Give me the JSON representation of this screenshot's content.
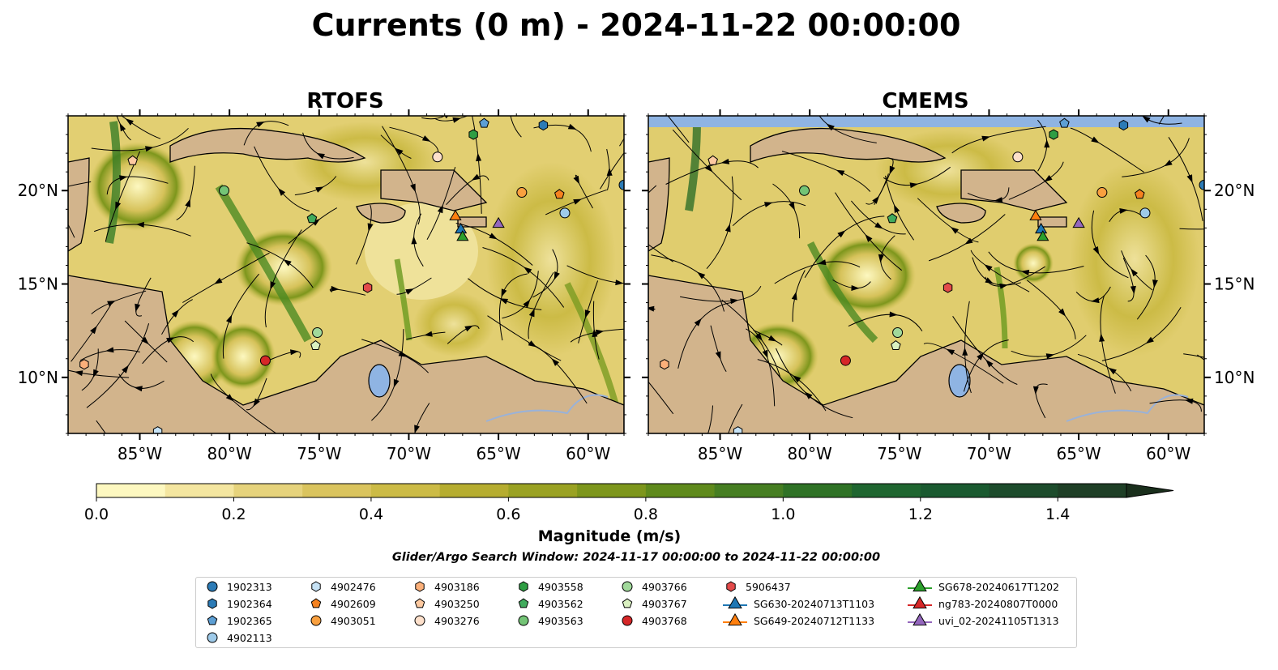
{
  "figure": {
    "title": "Currents (0 m) - 2024-11-22 00:00:00",
    "search_window": "Glider/Argo Search Window: 2024-11-17 00:00:00 to 2024-11-22 00:00:00"
  },
  "chart_data": [
    {
      "type": "heatmap",
      "title": "RTOFS",
      "xlim": [
        -89,
        -58
      ],
      "ylim": [
        7,
        24
      ],
      "x_ticks": [
        "85°W",
        "80°W",
        "75°W",
        "70°W",
        "65°W",
        "60°W"
      ],
      "y_ticks": [
        "10°N",
        "15°N",
        "20°N"
      ],
      "markers": [
        {
          "id": "1902313",
          "lon": -58.0,
          "lat": 20.3
        },
        {
          "id": "1902364",
          "lon": -62.5,
          "lat": 23.5
        },
        {
          "id": "1902365",
          "lon": -65.8,
          "lat": 23.6
        },
        {
          "id": "4902113",
          "lon": -61.3,
          "lat": 18.8
        },
        {
          "id": "4902476",
          "lon": -84.0,
          "lat": 7.1
        },
        {
          "id": "4902609",
          "lon": -61.6,
          "lat": 19.8
        },
        {
          "id": "4903051",
          "lon": -63.7,
          "lat": 19.9
        },
        {
          "id": "4903186",
          "lon": -88.1,
          "lat": 10.7
        },
        {
          "id": "4903250",
          "lon": -85.4,
          "lat": 21.6
        },
        {
          "id": "4903276",
          "lon": -68.4,
          "lat": 21.8
        },
        {
          "id": "4903558",
          "lon": -66.4,
          "lat": 23.0
        },
        {
          "id": "4903562",
          "lon": -75.4,
          "lat": 18.5
        },
        {
          "id": "4903563",
          "lon": -80.3,
          "lat": 20.0
        },
        {
          "id": "4903766",
          "lon": -75.1,
          "lat": 12.4
        },
        {
          "id": "4903767",
          "lon": -75.2,
          "lat": 11.7
        },
        {
          "id": "4903768",
          "lon": -78.0,
          "lat": 10.9
        },
        {
          "id": "5906437",
          "lon": -72.3,
          "lat": 14.8
        },
        {
          "id": "SG630-20240713T1103",
          "lon": -67.1,
          "lat": 17.9
        },
        {
          "id": "SG649-20240712T1133",
          "lon": -67.4,
          "lat": 18.6
        },
        {
          "id": "SG678-20240617T1202",
          "lon": -67.0,
          "lat": 17.5
        },
        {
          "id": "uvi_02-20241105T1313",
          "lon": -65.0,
          "lat": 18.2
        }
      ]
    },
    {
      "type": "heatmap",
      "title": "CMEMS",
      "xlim": [
        -89,
        -58
      ],
      "ylim": [
        7,
        24
      ],
      "x_ticks": [
        "85°W",
        "80°W",
        "75°W",
        "70°W",
        "65°W",
        "60°W"
      ],
      "y_ticks": [
        "10°N",
        "15°N",
        "20°N"
      ],
      "markers": [
        {
          "id": "1902313",
          "lon": -58.0,
          "lat": 20.3
        },
        {
          "id": "1902364",
          "lon": -62.5,
          "lat": 23.5
        },
        {
          "id": "1902365",
          "lon": -65.8,
          "lat": 23.6
        },
        {
          "id": "4902113",
          "lon": -61.3,
          "lat": 18.8
        },
        {
          "id": "4902476",
          "lon": -84.0,
          "lat": 7.1
        },
        {
          "id": "4902609",
          "lon": -61.6,
          "lat": 19.8
        },
        {
          "id": "4903051",
          "lon": -63.7,
          "lat": 19.9
        },
        {
          "id": "4903186",
          "lon": -88.1,
          "lat": 10.7
        },
        {
          "id": "4903250",
          "lon": -85.4,
          "lat": 21.6
        },
        {
          "id": "4903276",
          "lon": -68.4,
          "lat": 21.8
        },
        {
          "id": "4903558",
          "lon": -66.4,
          "lat": 23.0
        },
        {
          "id": "4903562",
          "lon": -75.4,
          "lat": 18.5
        },
        {
          "id": "4903563",
          "lon": -80.3,
          "lat": 20.0
        },
        {
          "id": "4903766",
          "lon": -75.1,
          "lat": 12.4
        },
        {
          "id": "4903767",
          "lon": -75.2,
          "lat": 11.7
        },
        {
          "id": "4903768",
          "lon": -78.0,
          "lat": 10.9
        },
        {
          "id": "5906437",
          "lon": -72.3,
          "lat": 14.8
        },
        {
          "id": "SG630-20240713T1103",
          "lon": -67.1,
          "lat": 17.9
        },
        {
          "id": "SG649-20240712T1133",
          "lon": -67.4,
          "lat": 18.6
        },
        {
          "id": "SG678-20240617T1202",
          "lon": -67.0,
          "lat": 17.5
        },
        {
          "id": "uvi_02-20241105T1313",
          "lon": -65.0,
          "lat": 18.2
        }
      ]
    }
  ],
  "colorbar": {
    "label": "Magnitude (m/s)",
    "min": 0.0,
    "max": 1.5,
    "extend": "max",
    "tick_values": [
      0.0,
      0.2,
      0.4,
      0.6,
      0.8,
      1.0,
      1.2,
      1.4
    ],
    "ticks": [
      "0.0",
      "0.2",
      "0.4",
      "0.6",
      "0.8",
      "1.0",
      "1.2",
      "1.4"
    ],
    "colors": [
      "#fdf8c0",
      "#f4e6a0",
      "#e6d37c",
      "#dac45e",
      "#ccbb46",
      "#b6ad30",
      "#9aa223",
      "#7d961c",
      "#5f8a1c",
      "#467e22",
      "#2f7226",
      "#1f6630",
      "#1a5a30",
      "#1d4c2c",
      "#1e3f26",
      "#1a2f1c"
    ]
  },
  "legend": [
    {
      "label": "1902313",
      "marker": "circle",
      "color": "#2c7bb6"
    },
    {
      "label": "1902364",
      "marker": "hexagon",
      "color": "#2c7bb6"
    },
    {
      "label": "1902365",
      "marker": "pentagon",
      "color": "#5d9fd4"
    },
    {
      "label": "4902113",
      "marker": "circle",
      "color": "#9ecae9"
    },
    {
      "label": "4902476",
      "marker": "hexagon",
      "color": "#c6e2f5"
    },
    {
      "label": "4902609",
      "marker": "pentagon",
      "color": "#f58220"
    },
    {
      "label": "4903051",
      "marker": "circle",
      "color": "#f9a03f"
    },
    {
      "label": "4903186",
      "marker": "hexagon",
      "color": "#fbb07a"
    },
    {
      "label": "4903250",
      "marker": "pentagon",
      "color": "#fdc9a0"
    },
    {
      "label": "4903276",
      "marker": "circle",
      "color": "#fde0cb"
    },
    {
      "label": "4903558",
      "marker": "hexagon",
      "color": "#2f9e44"
    },
    {
      "label": "4903562",
      "marker": "pentagon",
      "color": "#41ab5d"
    },
    {
      "label": "4903563",
      "marker": "circle",
      "color": "#74c476"
    },
    {
      "label": "4903766",
      "marker": "circle",
      "color": "#a1d99b"
    },
    {
      "label": "4903767",
      "marker": "pentagon",
      "color": "#d9f0c0"
    },
    {
      "label": "4903768",
      "marker": "circle",
      "color": "#d62728"
    },
    {
      "label": "5906437",
      "marker": "hexagon",
      "color": "#e34a4a"
    },
    {
      "label": "SG630-20240713T1103",
      "marker": "triangle",
      "color": "#1f77b4"
    },
    {
      "label": "SG649-20240712T1133",
      "marker": "triangle",
      "color": "#ff7f0e"
    },
    {
      "label": "SG678-20240617T1202",
      "marker": "triangle",
      "color": "#2ca02c"
    },
    {
      "label": "ng783-20240807T0000",
      "marker": "triangle",
      "color": "#d62728"
    },
    {
      "label": "uvi_02-20241105T1313",
      "marker": "triangle",
      "color": "#9467bd"
    }
  ],
  "colors": {
    "land": "#d2b48c",
    "lakes": "#8fb4e3",
    "rivers": "#9ab2d8",
    "nodata_band": "#8fb4e3"
  }
}
